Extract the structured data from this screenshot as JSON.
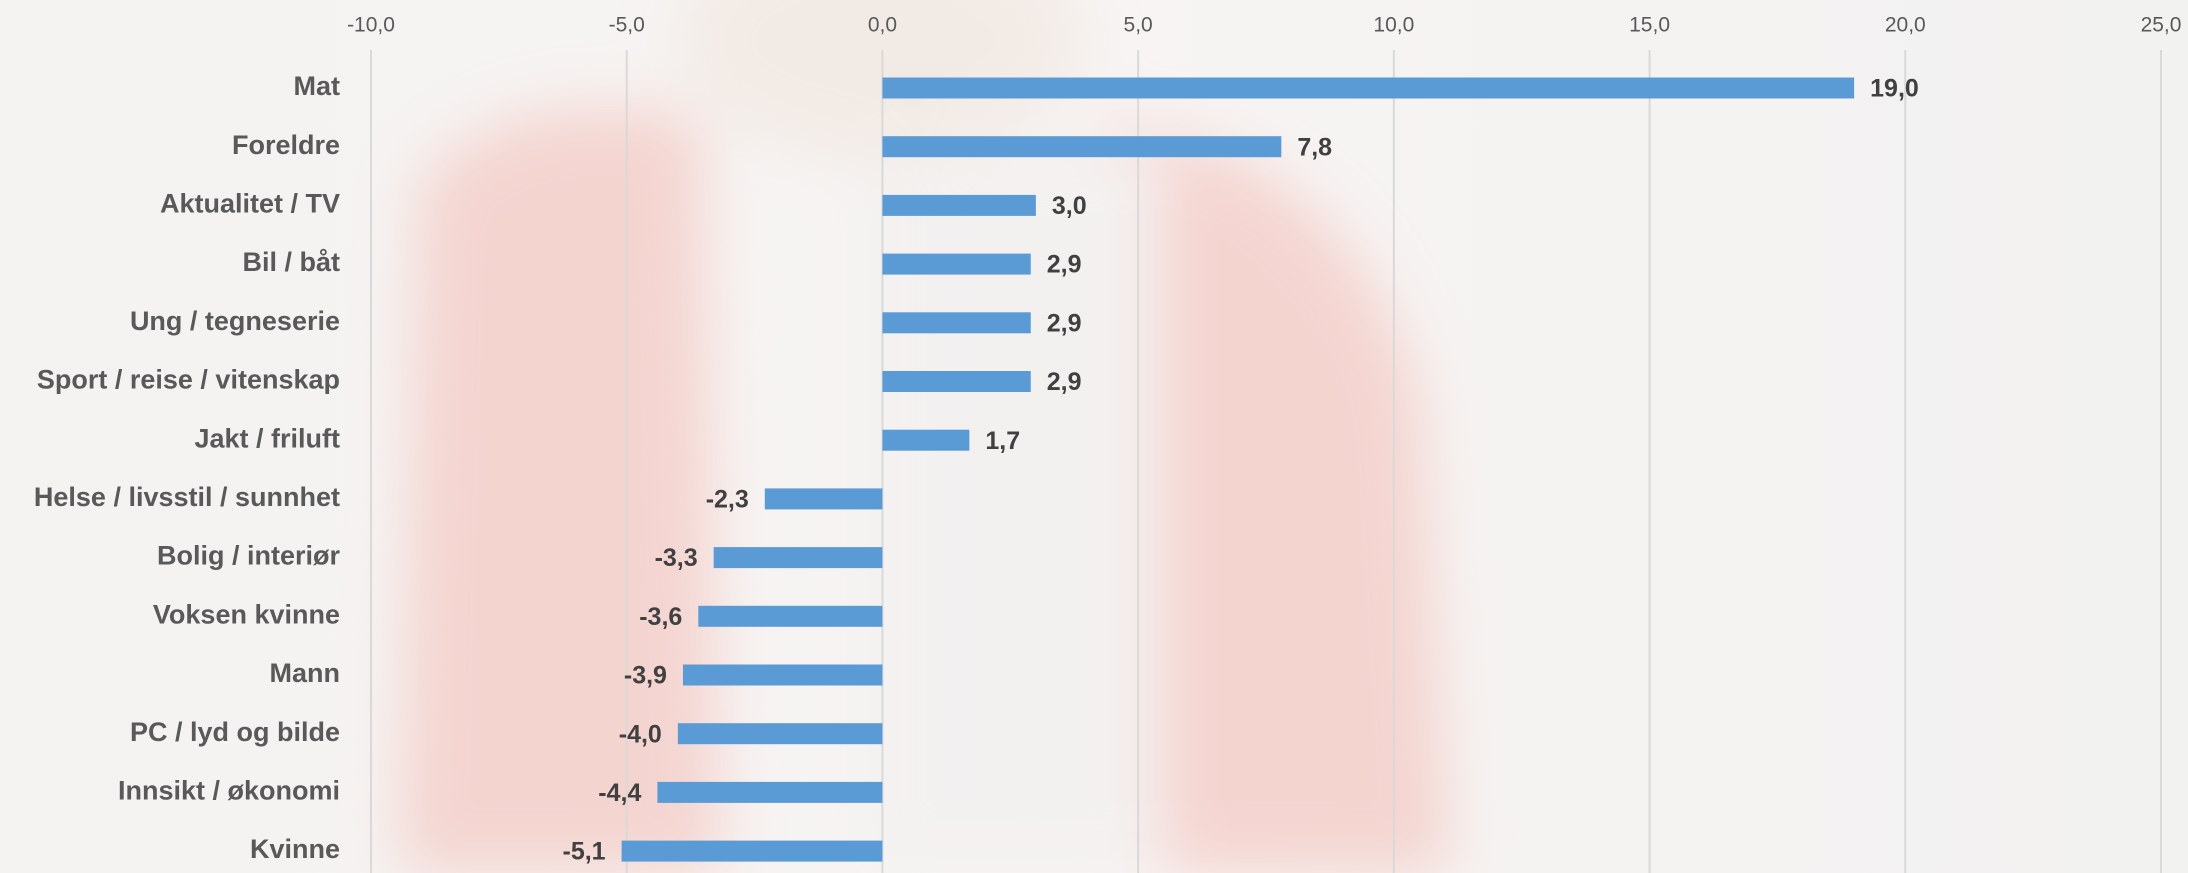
{
  "chart_data": {
    "type": "barh",
    "categories": [
      "Mat",
      "Foreldre",
      "Aktualitet / TV",
      "Bil / båt",
      "Ung / tegneserie",
      "Sport / reise / vitenskap",
      "Jakt / friluft",
      "Helse / livsstil / sunnhet",
      "Bolig / interiør",
      "Voksen kvinne",
      "Mann",
      "PC / lyd og bilde",
      "Innsikt / økonomi",
      "Kvinne"
    ],
    "values": [
      19.0,
      7.8,
      3.0,
      2.9,
      2.9,
      2.9,
      1.7,
      -2.3,
      -3.3,
      -3.6,
      -3.9,
      -4.0,
      -4.4,
      -5.1
    ],
    "value_labels": [
      "19,0",
      "7,8",
      "3,0",
      "2,9",
      "2,9",
      "2,9",
      "1,7",
      "-2,3",
      "-3,3",
      "-3,6",
      "-3,9",
      "-4,0",
      "-4,4",
      "-5,1"
    ],
    "color": "#5b9bd5",
    "xlim": [
      -10,
      25
    ],
    "xticks": [
      {
        "value": -10,
        "label": "-10,0"
      },
      {
        "value": -5,
        "label": "-5,0"
      },
      {
        "value": 0,
        "label": "0,0"
      },
      {
        "value": 5,
        "label": "5,0"
      },
      {
        "value": 10,
        "label": "10,0"
      },
      {
        "value": 15,
        "label": "15,0"
      },
      {
        "value": 20,
        "label": "20,0"
      },
      {
        "value": 25,
        "label": "25,0"
      }
    ],
    "grid": true
  }
}
